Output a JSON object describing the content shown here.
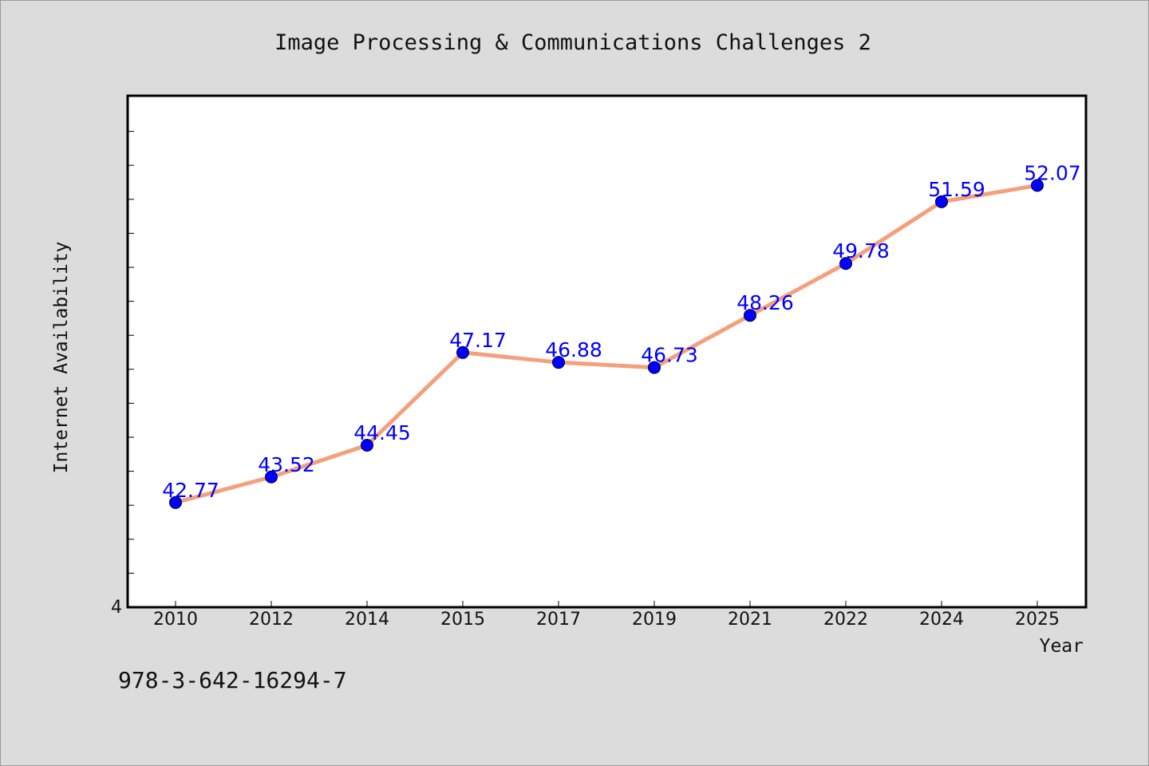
{
  "chart_data": {
    "type": "line",
    "title": "Image Processing & Communications Challenges 2",
    "xlabel": "Year",
    "ylabel": "Internet Availability",
    "categories": [
      "2010",
      "2012",
      "2014",
      "2015",
      "2017",
      "2019",
      "2021",
      "2022",
      "2024",
      "2025"
    ],
    "series": [
      {
        "values": [
          42.77,
          43.52,
          44.45,
          47.17,
          46.88,
          46.73,
          48.26,
          49.78,
          51.59,
          52.07
        ],
        "value_labels": [
          "42.77",
          "43.52",
          "44.45",
          "47.17",
          "46.88",
          "46.73",
          "48.26",
          "49.78",
          "51.59",
          "52.07"
        ]
      }
    ],
    "y_tick_labels": [
      "4"
    ],
    "ylim": [
      39.7,
      54.7
    ],
    "grid": false,
    "legend": "none",
    "colors": {
      "line": "#f4a07c",
      "marker": "#0000ff",
      "data_label": "#0000ff",
      "background": "#dcdcdc",
      "plot_background": "#ffffff"
    }
  },
  "footer": {
    "isbn": "978-3-642-16294-7"
  }
}
